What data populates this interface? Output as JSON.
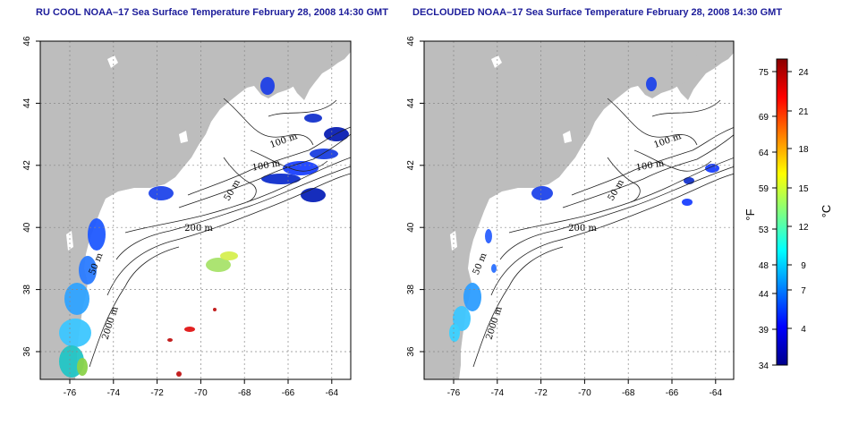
{
  "panels": [
    {
      "id": "left",
      "title": "RU COOL NOAA–17 Sea Surface Temperature February 28, 2008 14:30 GMT"
    },
    {
      "id": "right",
      "title": "DECLOUDED NOAA–17 Sea Surface Temperature February 28, 2008 14:30 GMT"
    }
  ],
  "map": {
    "lon_ticks": [
      "-76",
      "-74",
      "-72",
      "-70",
      "-68",
      "-66",
      "-64"
    ],
    "lat_ticks": [
      "46",
      "44",
      "42",
      "40",
      "38",
      "36"
    ],
    "contour_labels": [
      "100 m",
      "100 m",
      "50 m",
      "200 m",
      "50 m",
      "2000 m"
    ],
    "land_color": "#bdbdbd",
    "ocean_color": "#ffffff"
  },
  "colorbar": {
    "fahrenheit_ticks": [
      "75",
      "69",
      "64",
      "59",
      "53",
      "48",
      "44",
      "39",
      "34"
    ],
    "celsius_ticks": [
      "24",
      "21",
      "18",
      "15",
      "12",
      "9",
      "7",
      "4"
    ],
    "fahrenheit_unit": "°F",
    "celsius_unit": "°C",
    "colors": [
      "#00008b",
      "#0000ff",
      "#0080ff",
      "#00ffff",
      "#80ff80",
      "#ffff00",
      "#ff8000",
      "#ff0000",
      "#8b0000"
    ]
  }
}
